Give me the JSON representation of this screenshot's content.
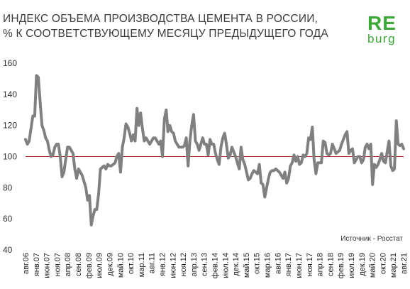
{
  "title_line1": "ИНДЕКС ОБЪЕМА ПРОИЗВОДСТВА ЦЕМЕНТА В РОССИИ,",
  "title_line2": "% К СООТВЕТСТВУЮЩЕМУ МЕСЯЦУ ПРЕДЫДУЩЕГО ГОДА",
  "logo": {
    "top": "RE",
    "bottom": "burg"
  },
  "source": "Источник - Росстат",
  "colors": {
    "line": "#808080",
    "reference": "#b22222",
    "logo": "#3aa935"
  },
  "chart_data": {
    "type": "line",
    "ylim": [
      40,
      160
    ],
    "yticks": [
      40,
      60,
      80,
      100,
      120,
      140,
      160
    ],
    "reference_line": 100,
    "grid": false,
    "x_start": "авг.06",
    "x_end": "авг.21",
    "x_ticks": [
      "авг.06",
      "янв.07",
      "июн.07",
      "ноя.07",
      "апр.08",
      "сен.08",
      "фев.09",
      "июл.09",
      "дек.09",
      "май.10",
      "окт.10",
      "мар.11",
      "авг.11",
      "янв.12",
      "июн.12",
      "ноя.12",
      "апр.13",
      "сен.13",
      "фев.14",
      "июл.14",
      "дек.14",
      "май.15",
      "окт.15",
      "мар.16",
      "авг.16",
      "янв.17",
      "июн.17",
      "ноя.17",
      "апр.18",
      "сен.18",
      "фев.19",
      "июл.19",
      "дек.19",
      "май.20",
      "окт.20",
      "мар.21",
      "авг.21"
    ],
    "series": [
      {
        "values": [
          111,
          108,
          110,
          118,
          126,
          126,
          152,
          151,
          135,
          120,
          117,
          112,
          110,
          104,
          100,
          101,
          106,
          108,
          108,
          100,
          87,
          90,
          98,
          106,
          106,
          104,
          102,
          92,
          86,
          92,
          90,
          88,
          84,
          80,
          72,
          75,
          56,
          62,
          66,
          66,
          76,
          92,
          93,
          94,
          92,
          95,
          94,
          94,
          95,
          96,
          100,
          102,
          90,
          106,
          112,
          121,
          119,
          115,
          110,
          114,
          110,
          131,
          120,
          128,
          118,
          110,
          112,
          110,
          108,
          110,
          112,
          112,
          110,
          108,
          110,
          100,
          124,
          130,
          116,
          120,
          116,
          115,
          110,
          108,
          106,
          106,
          106,
          107,
          112,
          94,
          110,
          120,
          127,
          110,
          108,
          104,
          108,
          112,
          108,
          108,
          101,
          111,
          108,
          108,
          102,
          98,
          95,
          106,
          112,
          115,
          108,
          99,
          101,
          106,
          103,
          100,
          96,
          92,
          106,
          98,
          95,
          90,
          85,
          86,
          89,
          91,
          90,
          89,
          95,
          83,
          82,
          74,
          80,
          86,
          90,
          91,
          91,
          92,
          91,
          90,
          88,
          86,
          90,
          83,
          86,
          94,
          96,
          101,
          97,
          100,
          95,
          96,
          101,
          100,
          102,
          112,
          111,
          119,
          98,
          89,
          96,
          96,
          96,
          110,
          109,
          102,
          101,
          102,
          108,
          105,
          102,
          103,
          104,
          108,
          111,
          114,
          116,
          102,
          104,
          105,
          96,
          98,
          100,
          100,
          96,
          98,
          106,
          108,
          105,
          108,
          82,
          95,
          93,
          95,
          98,
          102,
          97,
          96,
          103,
          110,
          94,
          91,
          92,
          123,
          108,
          107,
          108,
          105
        ]
      }
    ]
  }
}
